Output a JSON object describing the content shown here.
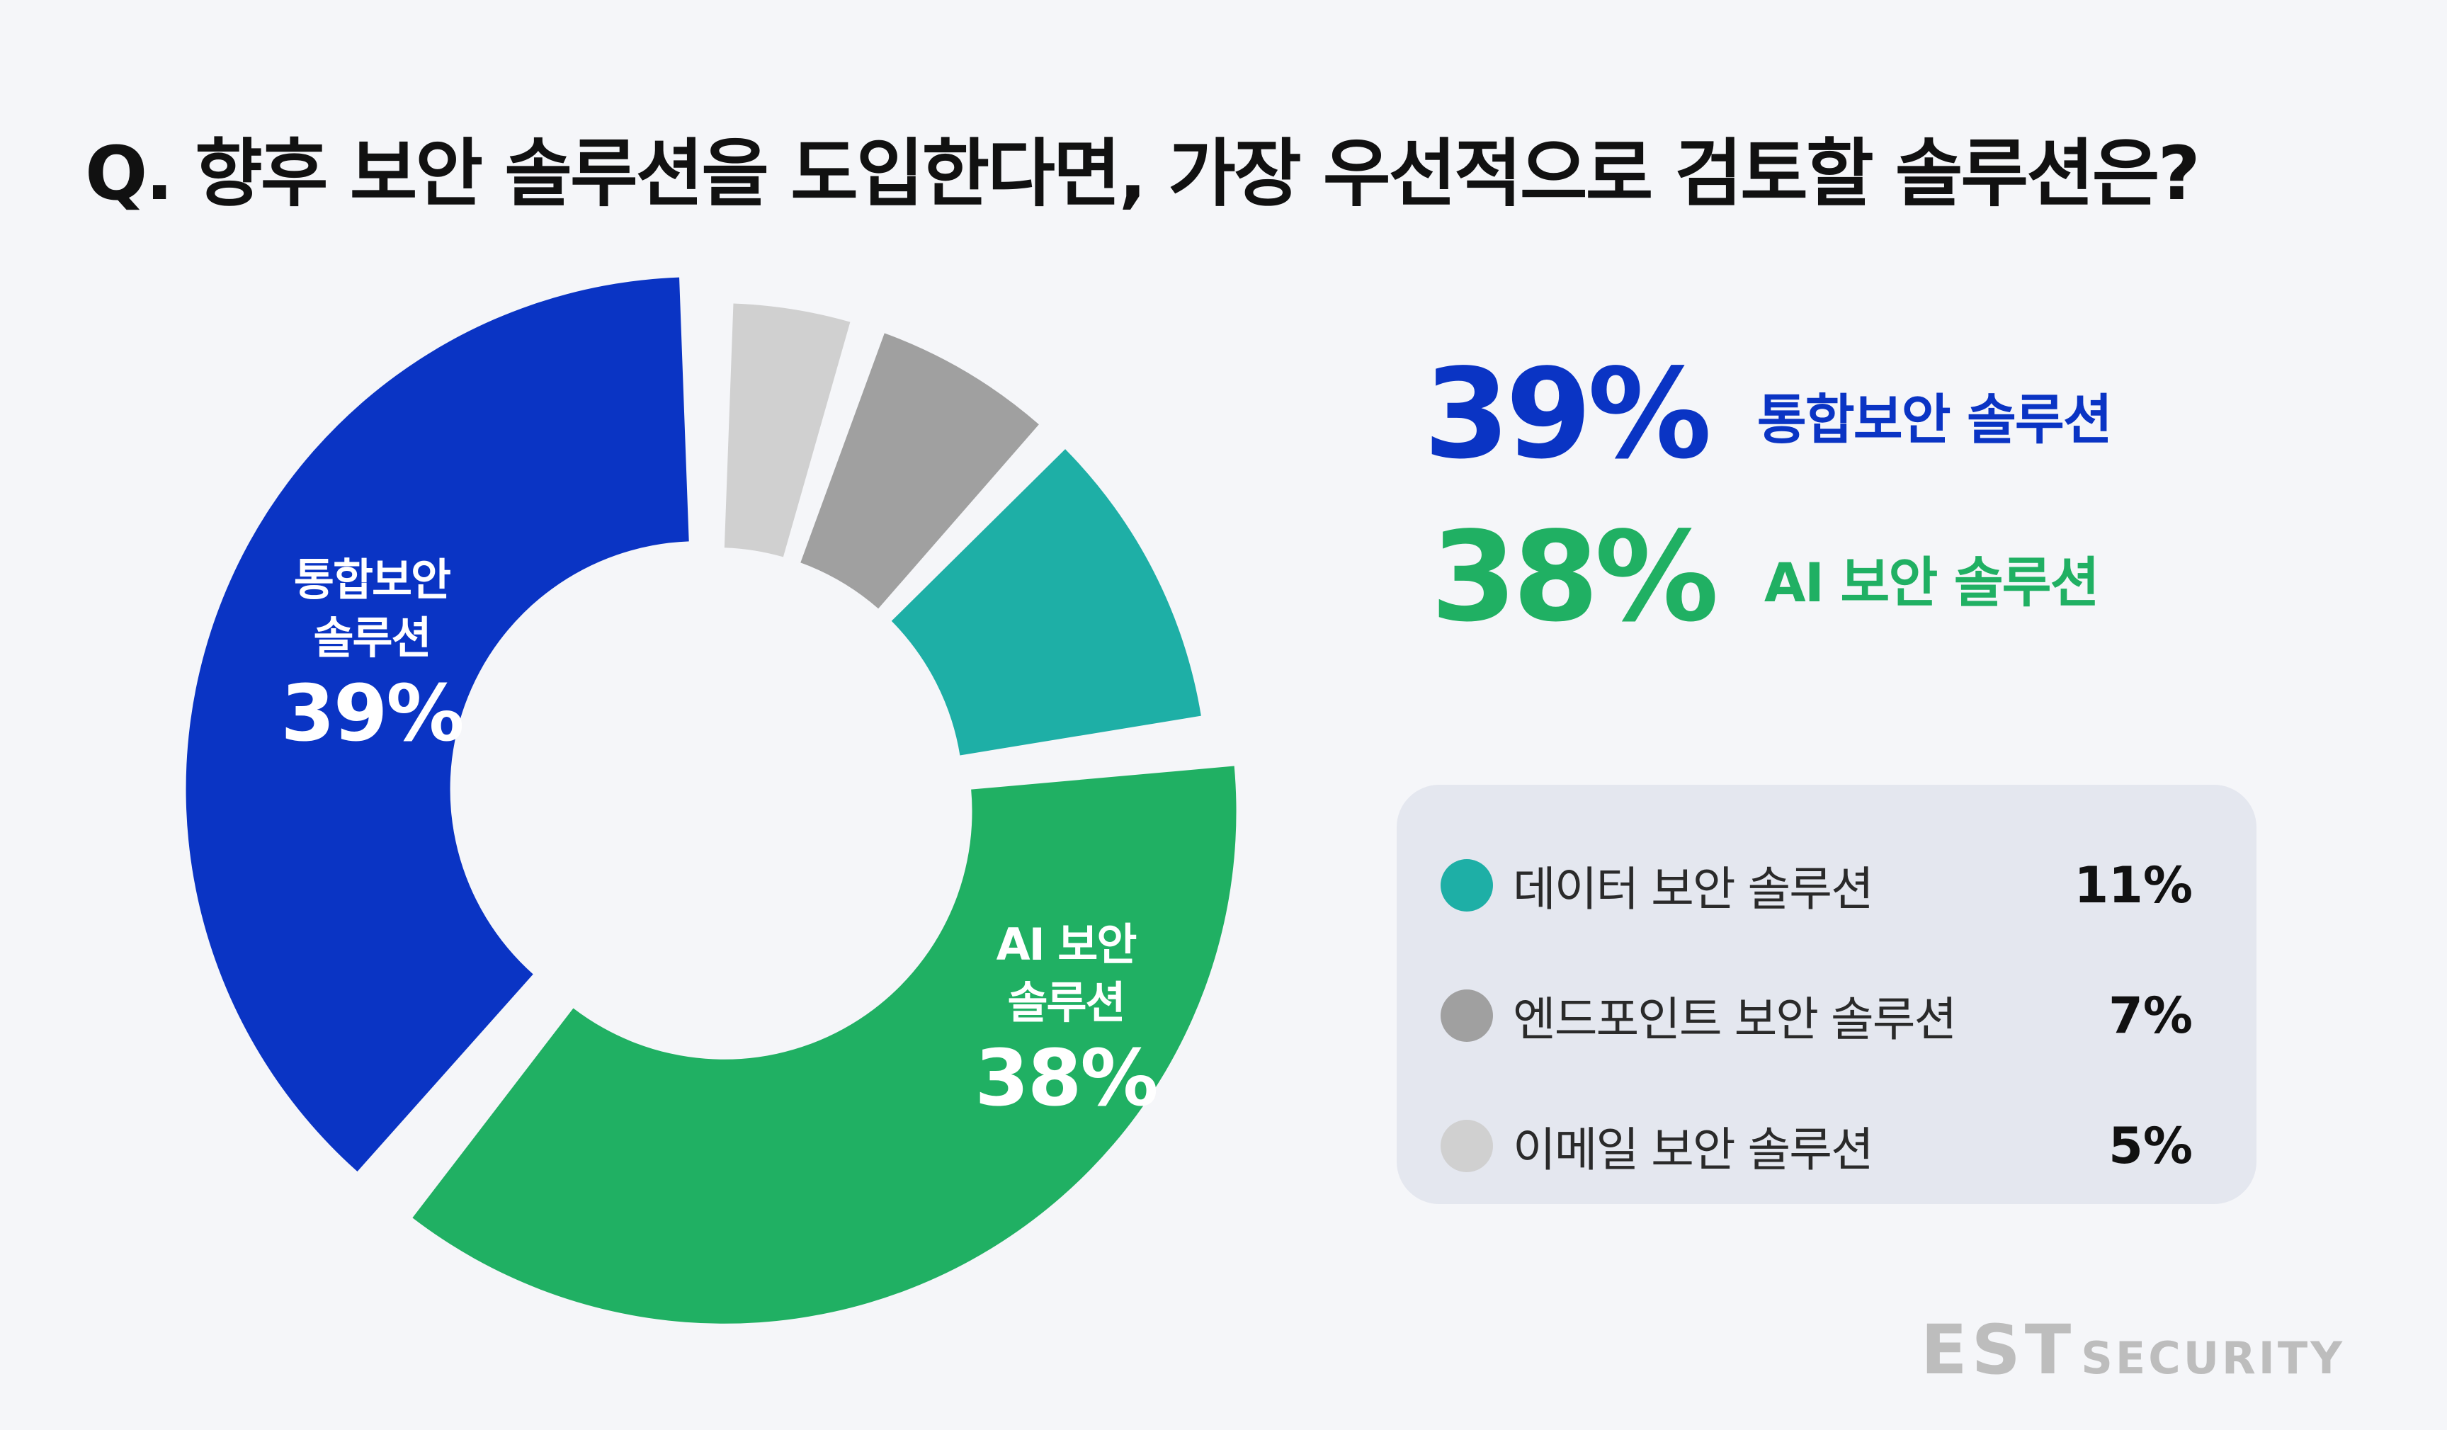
{
  "title": "Q. 향후 보안 솔루션을 도입한다면, 가장 우선적으로 검토할 솔루션은?",
  "chart_data": {
    "type": "pie",
    "title": "Q. 향후 보안 솔루션을 도입한다면, 가장 우선적으로 검토할 솔루션은?",
    "unit": "%",
    "slices": [
      {
        "label": "통합보안 솔루션",
        "value": 39,
        "color": "#0a34c4"
      },
      {
        "label": "AI 보안 솔루션",
        "value": 38,
        "color": "#20b063"
      },
      {
        "label": "데이터 보안 솔루션",
        "value": 11,
        "color": "#1eafa6"
      },
      {
        "label": "엔드포인트 보안 솔루션",
        "value": 7,
        "color": "#a0a0a0"
      },
      {
        "label": "이메일 보안 솔루션",
        "value": 5,
        "color": "#d0d0d0"
      }
    ],
    "segment_labels": [
      {
        "line1": "통합보안",
        "line2": "솔루션",
        "pct": "39%"
      },
      {
        "line1": "AI 보안",
        "line2": "솔루션",
        "pct": "38%"
      }
    ],
    "exploded": [
      "통합보안 솔루션",
      "AI 보안 솔루션"
    ]
  },
  "highlights": [
    {
      "pct": "39%",
      "name": "통합보안 솔루션",
      "color": "#0a34c4"
    },
    {
      "pct": "38%",
      "name": "AI 보안 솔루션",
      "color": "#20b063"
    }
  ],
  "legend": [
    {
      "name": "데이터 보안 솔루션",
      "value": "11%",
      "color": "#1eafa6"
    },
    {
      "name": "엔드포인트 보안 솔루션",
      "value": "7%",
      "color": "#a0a0a0"
    },
    {
      "name": "이메일 보안 솔루션",
      "value": "5%",
      "color": "#d0d0d0"
    }
  ],
  "logo": {
    "est": "EST",
    "security": "SECURITY"
  }
}
